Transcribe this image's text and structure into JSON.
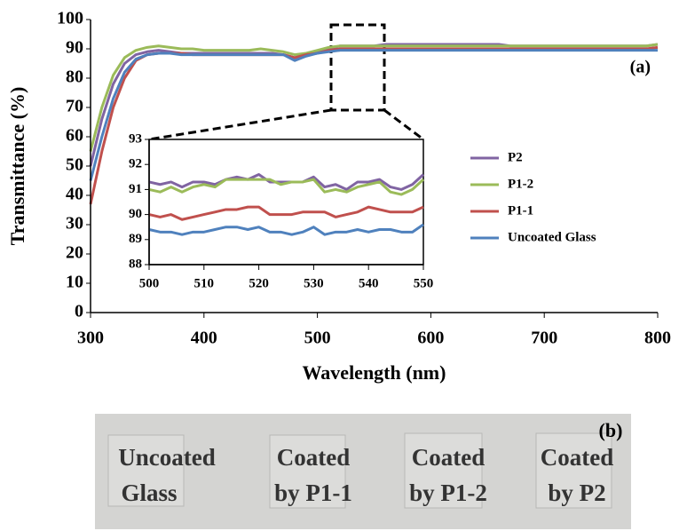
{
  "chart_data": [
    {
      "type": "line",
      "xlabel": "Wavelength  (nm)",
      "ylabel": "Transmittance  (%)",
      "annotation": "(a)",
      "x": [
        300,
        310,
        320,
        330,
        340,
        350,
        360,
        370,
        380,
        390,
        400,
        410,
        420,
        430,
        440,
        450,
        460,
        470,
        480,
        490,
        500,
        510,
        520,
        530,
        540,
        550,
        560,
        570,
        580,
        590,
        600,
        610,
        620,
        630,
        640,
        650,
        660,
        670,
        680,
        690,
        700,
        710,
        720,
        730,
        740,
        750,
        760,
        770,
        780,
        790,
        800
      ],
      "xlim": [
        300,
        800
      ],
      "xticks": [
        300,
        400,
        500,
        600,
        700,
        800
      ],
      "ylim": [
        0,
        100
      ],
      "yticks": [
        0,
        10,
        20,
        30,
        40,
        50,
        60,
        70,
        80,
        90,
        100
      ],
      "series": [
        {
          "name": "P2",
          "color": "#8064a2",
          "values": [
            50,
            66,
            78,
            85,
            88,
            89,
            89.5,
            89,
            88.5,
            88.5,
            88.5,
            88.5,
            88.5,
            88.5,
            88.5,
            88.5,
            88.5,
            88,
            87,
            88,
            89,
            90,
            91,
            91,
            91,
            91,
            91.5,
            91.5,
            91.5,
            91.5,
            91.5,
            91.5,
            91.5,
            91.5,
            91.5,
            91.5,
            91.5,
            91,
            91,
            91,
            91,
            91,
            91,
            91,
            91,
            91,
            91,
            91,
            91,
            91,
            91.5
          ]
        },
        {
          "name": "P1-2",
          "color": "#9bbb59",
          "values": [
            55,
            70,
            81,
            87,
            89.5,
            90.5,
            91,
            90.5,
            90,
            90,
            89.5,
            89.5,
            89.5,
            89.5,
            89.5,
            90,
            89.5,
            89,
            88,
            88.5,
            89.5,
            90.5,
            91,
            91,
            91,
            91,
            91,
            91,
            91,
            91,
            91,
            91,
            91,
            91,
            91,
            91,
            91,
            91,
            91,
            91,
            91,
            91,
            91,
            91,
            91,
            91,
            91,
            91,
            91,
            91,
            91.5
          ]
        },
        {
          "name": "P1-1",
          "color": "#c0504d",
          "values": [
            37,
            55,
            70,
            80,
            86,
            88,
            88.5,
            88.5,
            88.5,
            88,
            88,
            88,
            88,
            88,
            88,
            88,
            88,
            88,
            87,
            88,
            88.5,
            89.5,
            90,
            90,
            90,
            90,
            90,
            90,
            90,
            90,
            90,
            90,
            90,
            90,
            90,
            90,
            90,
            90,
            90,
            90,
            90,
            90,
            90,
            90,
            90,
            90,
            90,
            90,
            90,
            90,
            90.5
          ]
        },
        {
          "name": "Uncoated Glass",
          "color": "#4f81bd",
          "values": [
            45,
            60,
            73,
            82,
            86.5,
            88,
            88.5,
            88.5,
            88,
            88,
            88,
            88,
            88,
            88,
            88,
            88,
            88,
            88,
            86,
            87.5,
            88.5,
            89,
            89.5,
            89.5,
            89.5,
            89.5,
            89.5,
            89.5,
            89.5,
            89.5,
            89.5,
            89.5,
            89.5,
            89.5,
            89.5,
            89.5,
            89.5,
            89.5,
            89.5,
            89.5,
            89.5,
            89.5,
            89.5,
            89.5,
            89.5,
            89.5,
            89.5,
            89.5,
            89.5,
            89.5,
            89.5
          ]
        }
      ]
    },
    {
      "type": "line",
      "x": [
        500,
        502,
        504,
        506,
        508,
        510,
        512,
        514,
        516,
        518,
        520,
        522,
        524,
        526,
        528,
        530,
        532,
        534,
        536,
        538,
        540,
        542,
        544,
        546,
        548,
        550
      ],
      "xlim": [
        500,
        550
      ],
      "xticks": [
        500,
        510,
        520,
        530,
        540,
        550
      ],
      "ylim": [
        88,
        93
      ],
      "yticks": [
        88,
        89,
        90,
        91,
        92,
        93
      ],
      "series": [
        {
          "color": "#8064a2",
          "values": [
            91.3,
            91.2,
            91.3,
            91.1,
            91.3,
            91.3,
            91.2,
            91.4,
            91.5,
            91.4,
            91.6,
            91.3,
            91.3,
            91.3,
            91.3,
            91.5,
            91.1,
            91.2,
            91.0,
            91.3,
            91.3,
            91.4,
            91.1,
            91.0,
            91.2,
            91.6
          ]
        },
        {
          "color": "#9bbb59",
          "values": [
            91.0,
            90.9,
            91.1,
            90.9,
            91.1,
            91.2,
            91.1,
            91.4,
            91.4,
            91.4,
            91.4,
            91.4,
            91.2,
            91.3,
            91.3,
            91.4,
            90.9,
            91.0,
            90.9,
            91.1,
            91.2,
            91.3,
            90.9,
            90.8,
            91.0,
            91.4
          ]
        },
        {
          "color": "#c0504d",
          "values": [
            90.0,
            89.9,
            90.0,
            89.8,
            89.9,
            90.0,
            90.1,
            90.2,
            90.2,
            90.3,
            90.3,
            90.0,
            90.0,
            90.0,
            90.1,
            90.1,
            90.1,
            89.9,
            90.0,
            90.1,
            90.3,
            90.2,
            90.1,
            90.1,
            90.1,
            90.3
          ]
        },
        {
          "color": "#4f81bd",
          "values": [
            89.4,
            89.3,
            89.3,
            89.2,
            89.3,
            89.3,
            89.4,
            89.5,
            89.5,
            89.4,
            89.5,
            89.3,
            89.3,
            89.2,
            89.3,
            89.5,
            89.2,
            89.3,
            89.3,
            89.4,
            89.3,
            89.4,
            89.4,
            89.3,
            89.3,
            89.6
          ]
        }
      ]
    }
  ],
  "photo": {
    "label": "(b)",
    "samples": [
      [
        "Uncoated",
        "Glass"
      ],
      [
        "Coated",
        "by P1-1"
      ],
      [
        "Coated",
        "by P1-2"
      ],
      [
        "Coated",
        "by P2"
      ]
    ]
  }
}
